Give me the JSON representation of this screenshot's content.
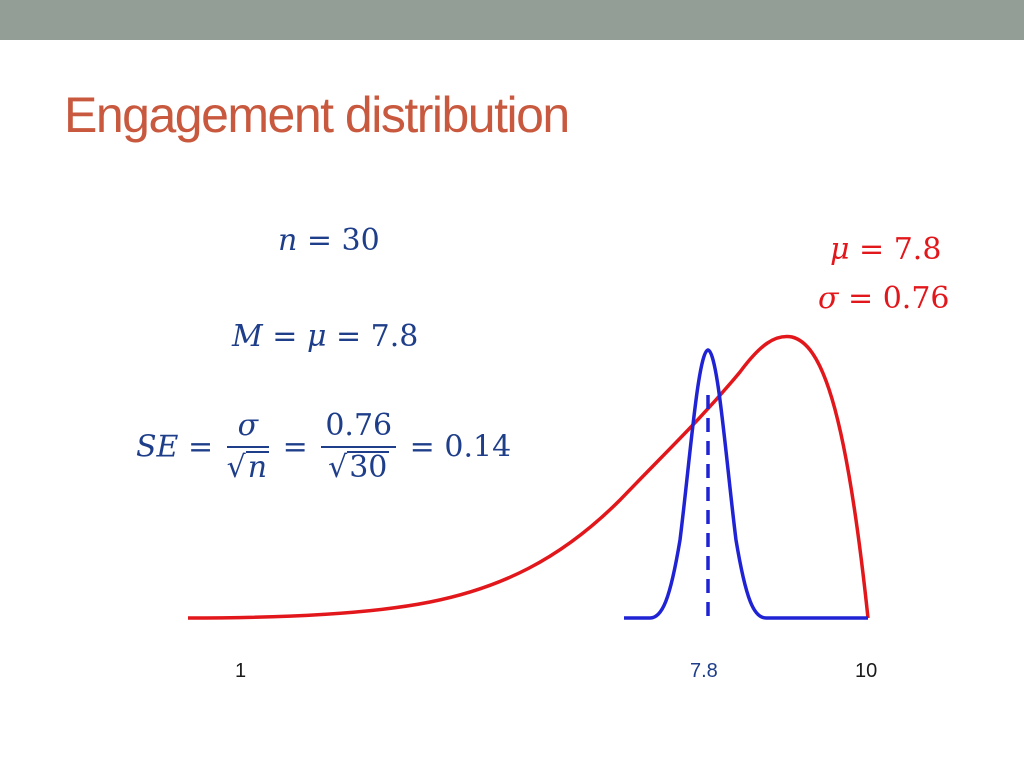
{
  "slide": {
    "title": "Engagement distribution"
  },
  "formulas": {
    "n_line": {
      "var": "n",
      "eq": " = ",
      "val": "30"
    },
    "m_line": {
      "M": "M",
      "eq1": " = ",
      "mu": "μ",
      "eq2": " = ",
      "val": "7.8"
    },
    "se_line": {
      "lhs": "SE",
      "eq1": " = ",
      "frac1_num": "σ",
      "frac1_den": "n",
      "eq2": " = ",
      "frac2_num": "0.76",
      "frac2_den": "30",
      "eq3": " = ",
      "result": "0.14"
    },
    "population": {
      "mu_line": {
        "sym": "μ",
        "eq": " = ",
        "val": "7.8"
      },
      "sigma_line": {
        "sym": "σ",
        "eq": " = ",
        "val": "0.76"
      }
    }
  },
  "axis": {
    "ticks": [
      {
        "label": "1",
        "value": 1
      },
      {
        "label": "7.8",
        "value": 7.8
      },
      {
        "label": "10",
        "value": 10
      }
    ]
  },
  "curves": {
    "population": {
      "color": "#e2171b",
      "mode_value": 8.8
    },
    "sampling": {
      "color": "#1f23d4",
      "mean": 7.8,
      "se": 0.14
    }
  },
  "colors": {
    "title": "#c8593e",
    "formula": "#1f3e8a",
    "topbar": "#939e97",
    "tick_blue": "#1f3e8a"
  }
}
